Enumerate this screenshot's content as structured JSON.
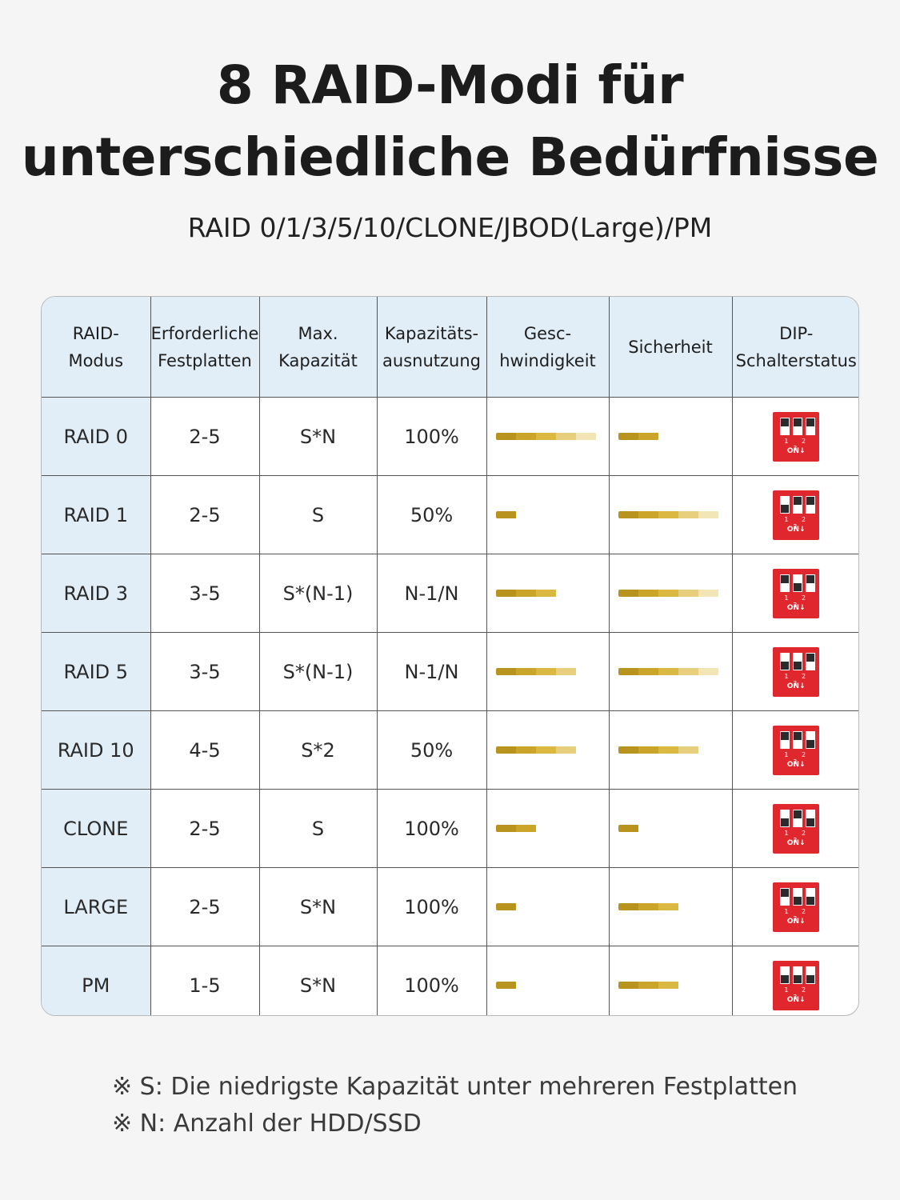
{
  "title_line1": "8 RAID-Modi für",
  "title_line2": "unterschiedliche Bedürfnisse",
  "subtitle": "RAID 0/1/3/5/10/CLONE/JBOD(Large)/PM",
  "colors": {
    "header_bg": "#e1eef7",
    "dip_red": "#e0272d",
    "bar_gold": "#cba52a"
  },
  "table": {
    "headers": [
      [
        "RAID-",
        "Modus"
      ],
      [
        "Erforderliche",
        "Festplatten"
      ],
      [
        "Max.",
        "Kapazität"
      ],
      [
        "Kapazitäts-",
        "ausnutzung"
      ],
      [
        "Gesc-",
        "hwindigkeit"
      ],
      [
        "Sicherheit"
      ],
      [
        "DIP-",
        "Schalterstatus"
      ]
    ],
    "dip_numbers": "1 2 3",
    "dip_on": "ON↓",
    "rows": [
      {
        "mode": "RAID 0",
        "disks": "2-5",
        "capacity": "S*N",
        "usage": "100%",
        "speed_level": 5,
        "security_level": 2,
        "dip": [
          "up",
          "up",
          "up"
        ]
      },
      {
        "mode": "RAID 1",
        "disks": "2-5",
        "capacity": "S",
        "usage": "50%",
        "speed_level": 1,
        "security_level": 5,
        "dip": [
          "down",
          "up",
          "up"
        ]
      },
      {
        "mode": "RAID 3",
        "disks": "3-5",
        "capacity": "S*(N-1)",
        "usage": "N-1/N",
        "speed_level": 3,
        "security_level": 5,
        "dip": [
          "up",
          "down",
          "up"
        ]
      },
      {
        "mode": "RAID 5",
        "disks": "3-5",
        "capacity": "S*(N-1)",
        "usage": "N-1/N",
        "speed_level": 4,
        "security_level": 5,
        "dip": [
          "down",
          "down",
          "up"
        ]
      },
      {
        "mode": "RAID 10",
        "disks": "4-5",
        "capacity": "S*2",
        "usage": "50%",
        "speed_level": 4,
        "security_level": 4,
        "dip": [
          "up",
          "up",
          "down"
        ]
      },
      {
        "mode": "CLONE",
        "disks": "2-5",
        "capacity": "S",
        "usage": "100%",
        "speed_level": 2,
        "security_level": 1,
        "dip": [
          "down",
          "up",
          "down"
        ]
      },
      {
        "mode": "LARGE",
        "disks": "2-5",
        "capacity": "S*N",
        "usage": "100%",
        "speed_level": 1,
        "security_level": 3,
        "dip": [
          "up",
          "down",
          "down"
        ]
      },
      {
        "mode": "PM",
        "disks": "1-5",
        "capacity": "S*N",
        "usage": "100%",
        "speed_level": 1,
        "security_level": 3,
        "dip": [
          "down",
          "down",
          "down"
        ]
      }
    ]
  },
  "notes": [
    "※ S: Die niedrigste Kapazität unter mehreren Festplatten",
    "※ N: Anzahl der HDD/SSD"
  ]
}
